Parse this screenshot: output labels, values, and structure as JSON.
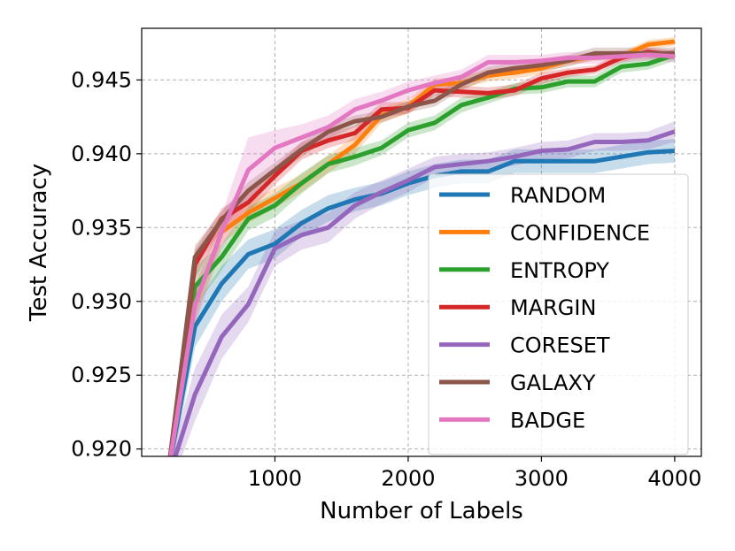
{
  "chart_data": {
    "type": "line",
    "title": "",
    "xlabel": "Number of Labels",
    "ylabel": "Test Accuracy",
    "xlim": [
      0,
      4200
    ],
    "ylim": [
      0.9195,
      0.9485
    ],
    "x_ticks": [
      1000,
      2000,
      3000,
      4000
    ],
    "y_ticks": [
      0.92,
      0.925,
      0.93,
      0.935,
      0.94,
      0.945
    ],
    "x_tick_labels": [
      "1000",
      "2000",
      "3000",
      "4000"
    ],
    "y_tick_labels": [
      "0.920",
      "0.925",
      "0.930",
      "0.935",
      "0.940",
      "0.945"
    ],
    "grid": true,
    "legend_position": "lower-right",
    "x": [
      200,
      400,
      600,
      800,
      1000,
      1200,
      1400,
      1600,
      1800,
      2000,
      2200,
      2400,
      2600,
      2800,
      3000,
      3200,
      3400,
      3600,
      3800,
      4000
    ],
    "series": [
      {
        "name": "RANDOM",
        "color": "#1f77b4",
        "values": [
          0.9185,
          0.9283,
          0.9312,
          0.9332,
          0.9339,
          0.9353,
          0.9363,
          0.9369,
          0.9373,
          0.938,
          0.9385,
          0.9388,
          0.9388,
          0.9395,
          0.9395,
          0.9395,
          0.9395,
          0.9398,
          0.9401,
          0.9402
        ],
        "band": [
          0.001,
          0.0014,
          0.0012,
          0.001,
          0.001,
          0.0009,
          0.0009,
          0.0008,
          0.0008,
          0.0008,
          0.0008,
          0.0008,
          0.0008,
          0.0008,
          0.0008,
          0.0008,
          0.0008,
          0.0008,
          0.0008,
          0.0008
        ]
      },
      {
        "name": "CONFIDENCE",
        "color": "#ff7f0e",
        "values": [
          0.9185,
          0.9298,
          0.9347,
          0.936,
          0.937,
          0.938,
          0.9393,
          0.9406,
          0.9426,
          0.9432,
          0.9447,
          0.9448,
          0.9453,
          0.9455,
          0.9458,
          0.9463,
          0.9466,
          0.9466,
          0.9474,
          0.9476
        ],
        "band": [
          0.001,
          0.0012,
          0.0008,
          0.0007,
          0.0007,
          0.0006,
          0.0006,
          0.0006,
          0.0005,
          0.0005,
          0.0004,
          0.0004,
          0.0004,
          0.0004,
          0.0004,
          0.0003,
          0.0003,
          0.0003,
          0.0003,
          0.0003
        ]
      },
      {
        "name": "ENTROPY",
        "color": "#2ca02c",
        "values": [
          0.9185,
          0.931,
          0.933,
          0.9356,
          0.9365,
          0.938,
          0.9393,
          0.9398,
          0.9404,
          0.9416,
          0.9421,
          0.9433,
          0.9438,
          0.9444,
          0.9445,
          0.9449,
          0.9449,
          0.9459,
          0.9461,
          0.9467
        ],
        "band": [
          0.001,
          0.0014,
          0.0009,
          0.0008,
          0.0008,
          0.0007,
          0.0006,
          0.0006,
          0.0005,
          0.0005,
          0.0005,
          0.0005,
          0.0004,
          0.0004,
          0.0004,
          0.0004,
          0.0004,
          0.0004,
          0.0004,
          0.0004
        ]
      },
      {
        "name": "MARGIN",
        "color": "#d62728",
        "values": [
          0.9185,
          0.9325,
          0.9356,
          0.9367,
          0.9385,
          0.9402,
          0.9409,
          0.9414,
          0.943,
          0.9431,
          0.9443,
          0.9442,
          0.9441,
          0.9443,
          0.9451,
          0.9455,
          0.9457,
          0.9465,
          0.9469,
          0.9467
        ],
        "band": [
          0.001,
          0.001,
          0.0007,
          0.0007,
          0.0006,
          0.0006,
          0.0005,
          0.0005,
          0.0005,
          0.0004,
          0.0004,
          0.0004,
          0.0004,
          0.0004,
          0.0004,
          0.0003,
          0.0003,
          0.0003,
          0.0003,
          0.0003
        ]
      },
      {
        "name": "CORESET",
        "color": "#9467bd",
        "values": [
          0.918,
          0.9237,
          0.9276,
          0.9298,
          0.9336,
          0.9345,
          0.935,
          0.9365,
          0.9374,
          0.9382,
          0.9391,
          0.9393,
          0.9395,
          0.9398,
          0.9402,
          0.9403,
          0.9408,
          0.9408,
          0.9409,
          0.9415
        ],
        "band": [
          0.001,
          0.0018,
          0.0015,
          0.0012,
          0.0012,
          0.001,
          0.001,
          0.0009,
          0.0008,
          0.0008,
          0.0007,
          0.0007,
          0.0006,
          0.0006,
          0.0006,
          0.0006,
          0.0006,
          0.0006,
          0.0006,
          0.0007
        ]
      },
      {
        "name": "GALAXY",
        "color": "#8c564b",
        "values": [
          0.9185,
          0.933,
          0.9355,
          0.9375,
          0.9389,
          0.9403,
          0.9415,
          0.9422,
          0.9425,
          0.9432,
          0.9436,
          0.9447,
          0.9455,
          0.9458,
          0.946,
          0.9463,
          0.9468,
          0.9468,
          0.9468,
          0.9468
        ],
        "band": [
          0.001,
          0.0008,
          0.0006,
          0.0006,
          0.0005,
          0.0005,
          0.0005,
          0.0004,
          0.0004,
          0.0004,
          0.0004,
          0.0004,
          0.0004,
          0.0004,
          0.0004,
          0.0004,
          0.0004,
          0.0004,
          0.0004,
          0.0004
        ]
      },
      {
        "name": "BADGE",
        "color": "#e377c2",
        "values": [
          0.9185,
          0.9298,
          0.9347,
          0.9389,
          0.9404,
          0.9411,
          0.9418,
          0.943,
          0.9436,
          0.9443,
          0.9448,
          0.9452,
          0.9462,
          0.9462,
          0.9463,
          0.9465,
          0.9465,
          0.9466,
          0.9467,
          0.9466
        ],
        "band": [
          0.001,
          0.0014,
          0.0012,
          0.0022,
          0.0012,
          0.0009,
          0.0008,
          0.0007,
          0.0006,
          0.0006,
          0.0005,
          0.0005,
          0.0005,
          0.0005,
          0.0004,
          0.0004,
          0.0004,
          0.0004,
          0.0004,
          0.0004
        ]
      }
    ]
  }
}
